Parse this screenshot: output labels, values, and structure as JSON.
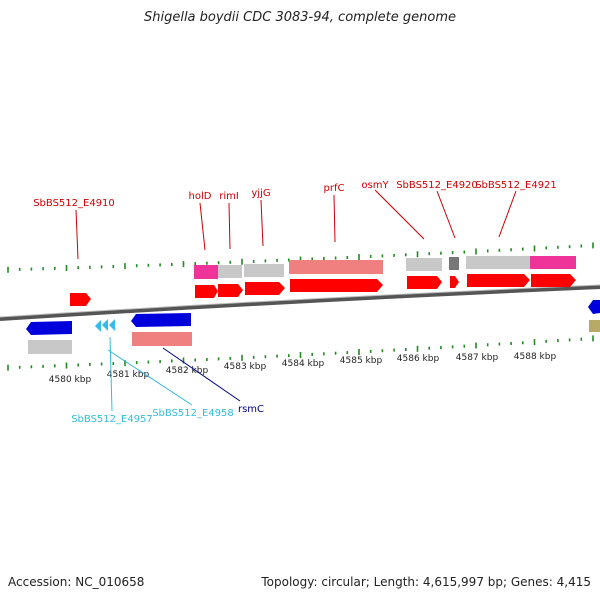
{
  "title": "Shigella boydii CDC 3083-94, complete genome",
  "footer": {
    "accession": "Accession: NC_010658",
    "stats": "Topology: circular; Length: 4,615,997 bp; Genes: 4,415"
  },
  "colors": {
    "cds": "#ff0000",
    "cds_dark": "#cc0000",
    "gene_gray": "#c8c8c8",
    "gene_pink": "#ee3399",
    "gene_salmon": "#f08080",
    "blue_strand": "#0000dd",
    "cyan_label": "#33bbdd",
    "navy_label": "#000088",
    "tick_green": "#228b22",
    "label_red": "#bb0000"
  },
  "axis": {
    "ticks": [
      {
        "kbp": 4580,
        "label": "4580 kbp"
      },
      {
        "kbp": 4581,
        "label": "4581 kbp"
      },
      {
        "kbp": 4582,
        "label": "4582 kbp"
      },
      {
        "kbp": 4583,
        "label": "4583 kbp"
      },
      {
        "kbp": 4584,
        "label": "4584 kbp"
      },
      {
        "kbp": 4585,
        "label": "4585 kbp"
      },
      {
        "kbp": 4586,
        "label": "4586 kbp"
      },
      {
        "kbp": 4587,
        "label": "4587 kbp"
      },
      {
        "kbp": 4588,
        "label": "4588 kbp"
      }
    ]
  },
  "top_labels": [
    {
      "text": "SbBS512_E4910"
    },
    {
      "text": "holD"
    },
    {
      "text": "rimI"
    },
    {
      "text": "yjjG"
    },
    {
      "text": "prfC"
    },
    {
      "text": "osmY"
    },
    {
      "text": "SbBS512_E4920"
    },
    {
      "text": "SbBS512_E4921"
    }
  ],
  "bottom_labels": [
    {
      "text": "SbBS512_E4957"
    },
    {
      "text": "SbBS512_E4958"
    },
    {
      "text": "rsmC"
    }
  ]
}
